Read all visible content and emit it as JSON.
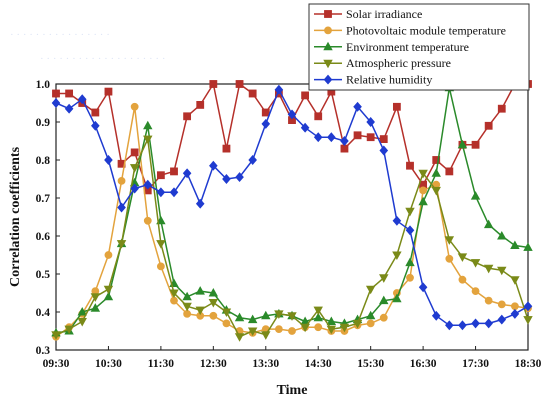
{
  "chart_data": {
    "type": "line",
    "xlabel": "Time",
    "ylabel": "Correlation coefficients",
    "ylim": [
      0.3,
      1.0
    ],
    "yticks": [
      "0.3",
      "0.4",
      "0.5",
      "0.6",
      "0.7",
      "0.8",
      "0.9",
      "1.0"
    ],
    "xlim": [
      0,
      36
    ],
    "xticks": [
      {
        "x": 0,
        "label": "09:30"
      },
      {
        "x": 4,
        "label": "10:30"
      },
      {
        "x": 8,
        "label": "11:30"
      },
      {
        "x": 12,
        "label": "12:30"
      },
      {
        "x": 16,
        "label": "13:30"
      },
      {
        "x": 20,
        "label": "14:30"
      },
      {
        "x": 24,
        "label": "15:30"
      },
      {
        "x": 28,
        "label": "16:30"
      },
      {
        "x": 32,
        "label": "17:30"
      },
      {
        "x": 36,
        "label": "18:30"
      }
    ],
    "legend_position": "top-right",
    "series": [
      {
        "name": "Solar irradiance",
        "color": "#b5302a",
        "marker": "square",
        "values": [
          0.975,
          0.975,
          0.95,
          0.925,
          0.98,
          0.79,
          0.82,
          0.72,
          0.76,
          0.77,
          0.915,
          0.945,
          1.0,
          0.83,
          1.0,
          0.975,
          0.925,
          0.975,
          0.905,
          0.97,
          0.915,
          0.98,
          0.83,
          0.865,
          0.86,
          0.855,
          0.94,
          0.785,
          0.735,
          0.8,
          0.77,
          0.84,
          0.84,
          0.89,
          0.935,
          1.0,
          1.0
        ]
      },
      {
        "name": "Photovoltaic module temperature",
        "color": "#e3a33d",
        "marker": "circle",
        "values": [
          0.335,
          0.36,
          0.395,
          0.455,
          0.55,
          0.745,
          0.94,
          0.64,
          0.52,
          0.43,
          0.395,
          0.39,
          0.39,
          0.37,
          0.35,
          0.345,
          0.355,
          0.355,
          0.35,
          0.36,
          0.36,
          0.35,
          0.35,
          0.365,
          0.37,
          0.385,
          0.45,
          0.49,
          0.72,
          0.735,
          0.54,
          0.485,
          0.455,
          0.43,
          0.42,
          0.415,
          0.41
        ]
      },
      {
        "name": "Environment temperature",
        "color": "#2a8a2a",
        "marker": "triangle-up",
        "values": [
          0.345,
          0.35,
          0.4,
          0.41,
          0.44,
          0.58,
          0.74,
          0.89,
          0.64,
          0.475,
          0.44,
          0.455,
          0.45,
          0.405,
          0.385,
          0.38,
          0.39,
          0.395,
          0.39,
          0.375,
          0.385,
          0.375,
          0.37,
          0.38,
          0.39,
          0.43,
          0.435,
          0.53,
          0.69,
          0.765,
          0.99,
          0.84,
          0.705,
          0.63,
          0.6,
          0.575,
          0.57
        ]
      },
      {
        "name": "Atmospheric pressure",
        "color": "#7a8a18",
        "marker": "triangle-down",
        "values": [
          0.34,
          0.355,
          0.375,
          0.44,
          0.46,
          0.58,
          0.78,
          0.855,
          0.58,
          0.45,
          0.415,
          0.405,
          0.425,
          0.4,
          0.335,
          0.35,
          0.34,
          0.395,
          0.39,
          0.36,
          0.405,
          0.355,
          0.36,
          0.37,
          0.46,
          0.49,
          0.55,
          0.665,
          0.765,
          0.72,
          0.59,
          0.545,
          0.53,
          0.515,
          0.51,
          0.485,
          0.38
        ]
      },
      {
        "name": "Relative humidity",
        "color": "#1f3bd0",
        "marker": "diamond",
        "values": [
          0.95,
          0.935,
          0.96,
          0.89,
          0.8,
          0.675,
          0.725,
          0.735,
          0.715,
          0.715,
          0.765,
          0.685,
          0.785,
          0.75,
          0.755,
          0.8,
          0.895,
          0.985,
          0.92,
          0.885,
          0.86,
          0.86,
          0.85,
          0.94,
          0.9,
          0.825,
          0.64,
          0.615,
          0.465,
          0.39,
          0.365,
          0.365,
          0.37,
          0.37,
          0.38,
          0.395,
          0.415
        ]
      }
    ]
  }
}
